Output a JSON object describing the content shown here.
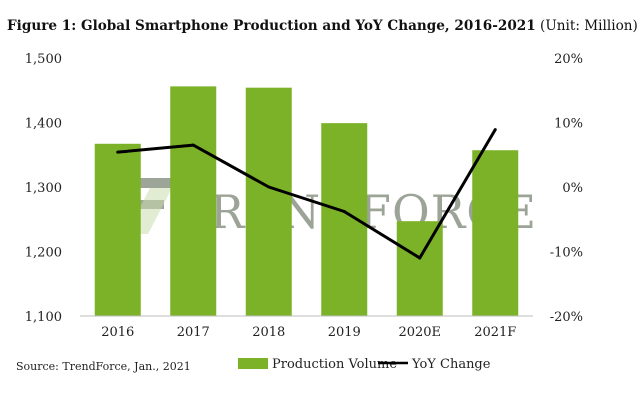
{
  "chart_data": {
    "type": "bar+line",
    "title_bold": "Figure 1: Global Smartphone Production and YoY Change, 2016-2021",
    "title_unit": "(Unit: Million)",
    "categories": [
      "2016",
      "2017",
      "2018",
      "2019",
      "2020E",
      "2021F"
    ],
    "series": [
      {
        "name": "Production Volume",
        "type": "bar",
        "axis": "left",
        "values": [
          1367,
          1456,
          1454,
          1399,
          1247,
          1357
        ]
      },
      {
        "name": "YoY Change",
        "type": "line",
        "axis": "right",
        "values": [
          5.4,
          6.5,
          0.0,
          -3.8,
          -11.0,
          8.9
        ]
      }
    ],
    "y_left": {
      "min": 1100,
      "max": 1500,
      "ticks": [
        "1,100",
        "1,200",
        "1,300",
        "1,400",
        "1,500"
      ]
    },
    "y_right": {
      "min": -20,
      "max": 20,
      "ticks": [
        "-20%",
        "-10%",
        "0%",
        "10%",
        "20%"
      ]
    },
    "legend_position": "bottom",
    "source": "Source: TrendForce, Jan., 2021",
    "watermark": "TRENDFORCE",
    "colors": {
      "bar": "#7cb227",
      "line": "#000000"
    }
  }
}
